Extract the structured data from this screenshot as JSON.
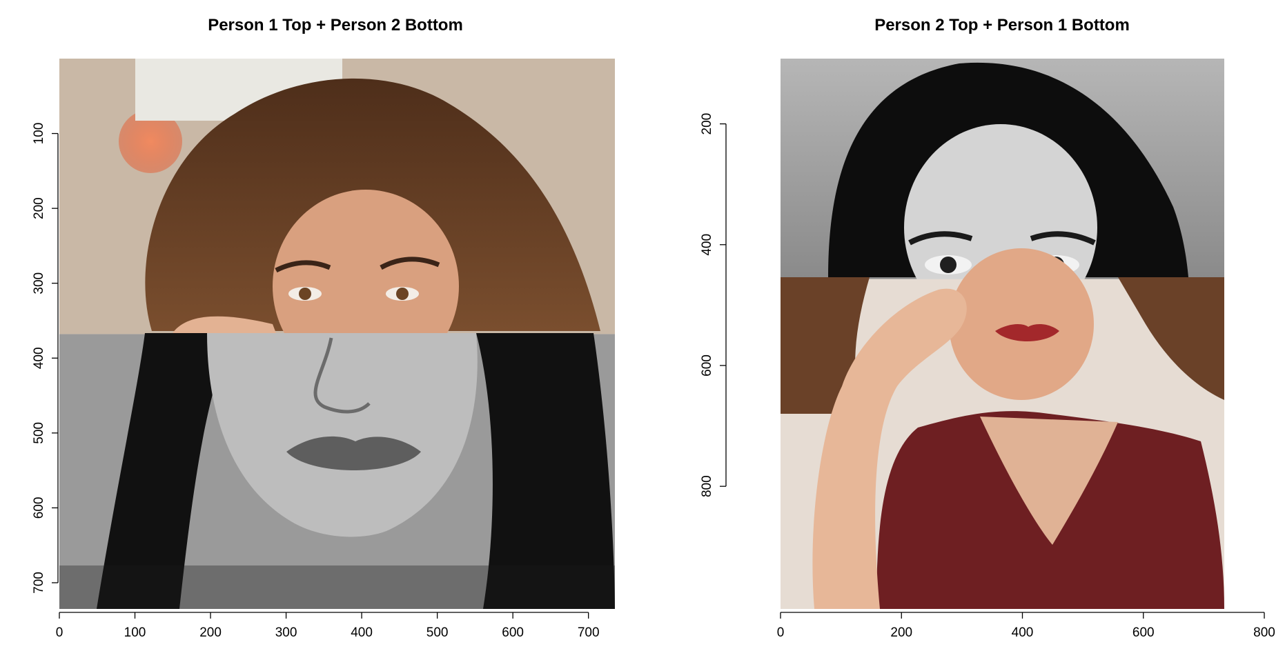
{
  "chart_data": [
    {
      "type": "image",
      "title": "Person 1 Top + Person 2 Bottom",
      "xlabel": "",
      "ylabel": "",
      "xlim": [
        0,
        735
      ],
      "ylim": [
        735,
        0
      ],
      "x_ticks": [
        0,
        100,
        200,
        300,
        400,
        500,
        600,
        700
      ],
      "y_ticks": [
        100,
        200,
        300,
        400,
        500,
        600,
        700
      ],
      "split_y": 368,
      "top_part": "Person 1 (color, eyes and hair)",
      "bottom_part": "Person 2 (grayscale, nose, lips and chin)"
    },
    {
      "type": "image",
      "title": "Person 2 Top + Person 1 Bottom",
      "xlabel": "",
      "ylabel": "",
      "xlim": [
        0,
        800
      ],
      "ylim": [
        1003,
        92
      ],
      "x_ticks": [
        0,
        200,
        400,
        600,
        800
      ],
      "y_ticks": [
        200,
        400,
        600,
        800
      ],
      "split_y": 457,
      "top_part": "Person 2 (grayscale, hair and eyes)",
      "bottom_part": "Person 1 (color, lips, hand and red top)"
    }
  ],
  "colors": {
    "p1_hair": "#6a4128",
    "p1_skin": "#d9a07f",
    "p1_bg": "#c9b8a6",
    "p1_bokeh": "#ea7a52",
    "p2_hair": "#0d0d0d",
    "p2_skin": "#d4d4d4",
    "p2_bg": "#9c9c9c",
    "shirt": "#6e1f22",
    "lips": "#a3282b"
  }
}
